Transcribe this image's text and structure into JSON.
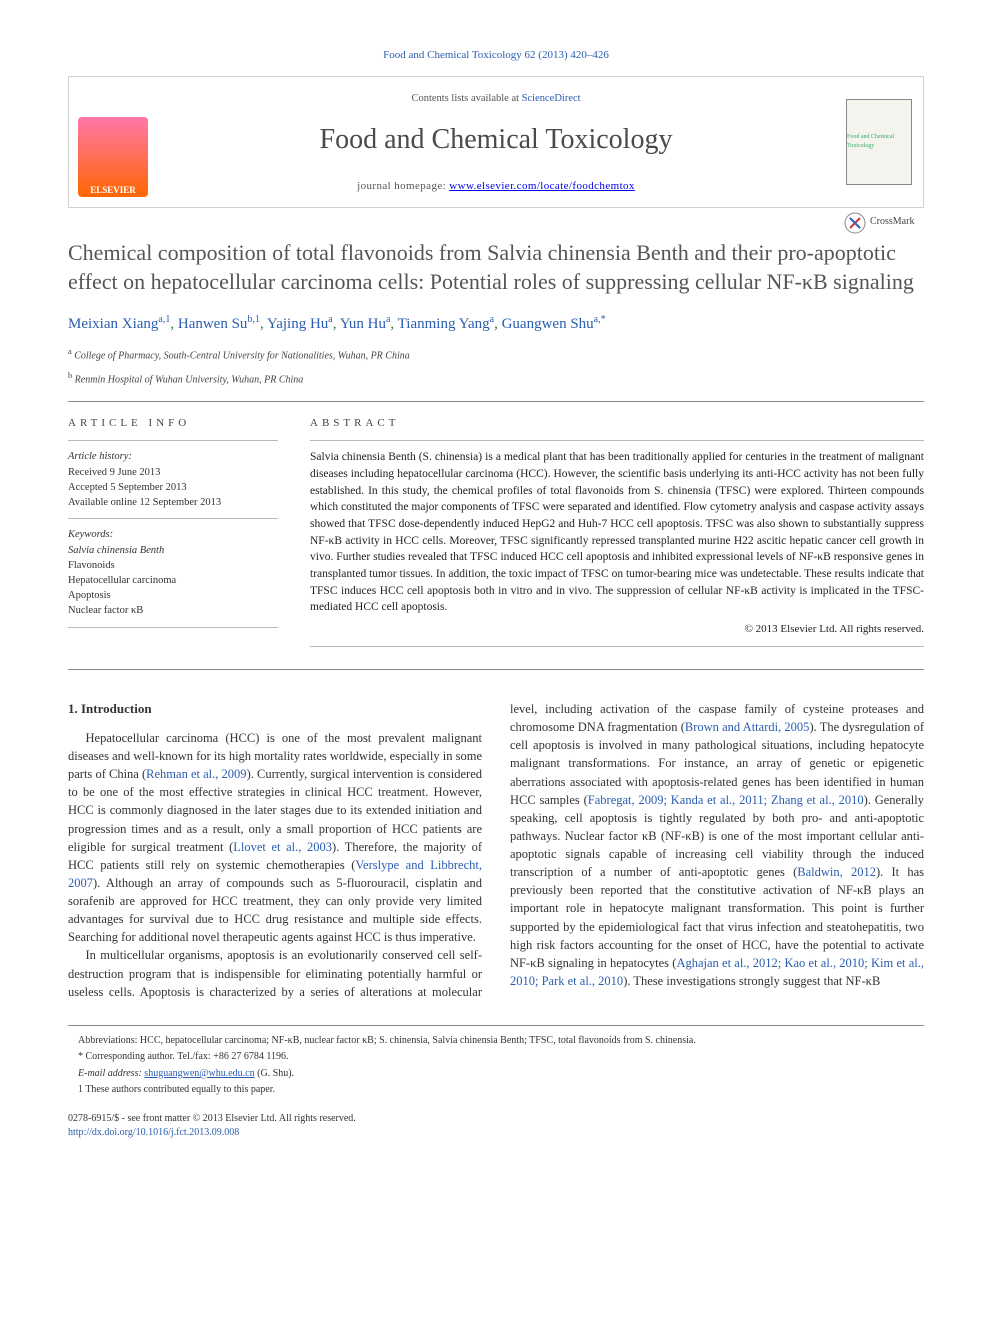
{
  "top_citation": "Food and Chemical Toxicology 62 (2013) 420–426",
  "header": {
    "contents_line_pre": "Contents lists available at ",
    "contents_link": "ScienceDirect",
    "journal_name": "Food and Chemical Toxicology",
    "homepage_label": "journal homepage: ",
    "homepage_url": "www.elsevier.com/locate/foodchemtox",
    "publisher_logo_label": "ELSEVIER",
    "cover_label": "Food and Chemical Toxicology"
  },
  "crossmark_label": "CrossMark",
  "title": "Chemical composition of total flavonoids from Salvia chinensia Benth and their pro-apoptotic effect on hepatocellular carcinoma cells: Potential roles of suppressing cellular NF-κB signaling",
  "authors_html": "Meixian Xiang<sup>a,1</sup>, Hanwen Su<sup>b,1</sup>, Yajing Hu<sup>a</sup>, Yun Hu<sup>a</sup>, Tianming Yang<sup>a</sup>, Guangwen Shu<sup>a,*</sup>",
  "affiliations": [
    "a College of Pharmacy, South-Central University for Nationalities, Wuhan, PR China",
    "b Renmin Hospital of Wuhan University, Wuhan, PR China"
  ],
  "article_info": {
    "head": "ARTICLE INFO",
    "history_label": "Article history:",
    "history": [
      "Received 9 June 2013",
      "Accepted 5 September 2013",
      "Available online 12 September 2013"
    ],
    "keywords_label": "Keywords:",
    "keywords": [
      "Salvia chinensia Benth",
      "Flavonoids",
      "Hepatocellular carcinoma",
      "Apoptosis",
      "Nuclear factor κB"
    ]
  },
  "abstract": {
    "head": "ABSTRACT",
    "text": "Salvia chinensia Benth (S. chinensia) is a medical plant that has been traditionally applied for centuries in the treatment of malignant diseases including hepatocellular carcinoma (HCC). However, the scientific basis underlying its anti-HCC activity has not been fully established. In this study, the chemical profiles of total flavonoids from S. chinensia (TFSC) were explored. Thirteen compounds which constituted the major components of TFSC were separated and identified. Flow cytometry analysis and caspase activity assays showed that TFSC dose-dependently induced HepG2 and Huh-7 HCC cell apoptosis. TFSC was also shown to substantially suppress NF-κB activity in HCC cells. Moreover, TFSC significantly repressed transplanted murine H22 ascitic hepatic cancer cell growth in vivo. Further studies revealed that TFSC induced HCC cell apoptosis and inhibited expressional levels of NF-κB responsive genes in transplanted tumor tissues. In addition, the toxic impact of TFSC on tumor-bearing mice was undetectable. These results indicate that TFSC induces HCC cell apoptosis both in vitro and in vivo. The suppression of cellular NF-κB activity is implicated in the TFSC-mediated HCC cell apoptosis.",
    "copyright": "© 2013 Elsevier Ltd. All rights reserved."
  },
  "intro": {
    "head": "1. Introduction",
    "p1_a": "Hepatocellular carcinoma (HCC) is one of the most prevalent malignant diseases and well-known for its high mortality rates worldwide, especially in some parts of China (",
    "p1_c1": "Rehman et al., 2009",
    "p1_b": "). Currently, surgical intervention is considered to be one of the most effective strategies in clinical HCC treatment. However, HCC is commonly diagnosed in the later stages due to its extended initiation and progression times and as a result, only a small proportion of HCC patients are eligible for surgical treatment (",
    "p1_c2": "Llovet et al., 2003",
    "p1_c": "). Therefore, the majority of HCC patients still rely on systemic chemotherapies (",
    "p1_c3": "Verslype and Libbrecht, 2007",
    "p1_d": "). Although an array of compounds such as 5-fluorouracil, cisplatin and sorafenib are approved for HCC treatment, they can only provide very limited advantages for survival due to HCC drug resistance and multiple side effects. Searching for additional novel therapeutic agents against HCC is thus imperative.",
    "p2_a": "In multicellular organisms, apoptosis is an evolutionarily conserved cell self-destruction program that is indispensible for eliminating potentially harmful or useless cells. Apoptosis is characterized by a series of alterations at molecular level, including activation of the caspase family of cysteine proteases and chromosome DNA fragmentation (",
    "p2_c1": "Brown and Attardi, 2005",
    "p2_b": "). The dysregulation of cell apoptosis is involved in many pathological situations, including hepatocyte malignant transformations. For instance, an array of genetic or epigenetic aberrations associated with apoptosis-related genes has been identified in human HCC samples (",
    "p2_c2": "Fabregat, 2009; Kanda et al., 2011; Zhang et al., 2010",
    "p2_c": "). Generally speaking, cell apoptosis is tightly regulated by both pro- and anti-apoptotic pathways. Nuclear factor κB (NF-κB) is one of the most important cellular anti-apoptotic signals capable of increasing cell viability through the induced transcription of a number of anti-apoptotic genes (",
    "p2_c3": "Baldwin, 2012",
    "p2_d": "). It has previously been reported that the constitutive activation of NF-κB plays an important role in hepatocyte malignant transformation. This point is further supported by the epidemiological fact that virus infection and steatohepatitis, two high risk factors accounting for the onset of HCC, have the potential to activate NF-κB signaling in hepatocytes (",
    "p2_c4": "Aghajan et al., 2012; Kao et al., 2010; Kim et al., 2010; Park et al., 2010",
    "p2_e": "). These investigations strongly suggest that NF-κB"
  },
  "footnotes": {
    "abbrev": "Abbreviations: HCC, hepatocellular carcinoma; NF-κB, nuclear factor κB; S. chinensia, Salvia chinensia Benth; TFSC, total flavonoids from S. chinensia.",
    "corr": "* Corresponding author. Tel./fax: +86 27 6784 1196.",
    "email_lbl": "E-mail address: ",
    "email": "shuguangwen@whu.edu.cn",
    "email_suffix": " (G. Shu).",
    "equal": "1 These authors contributed equally to this paper."
  },
  "footer": {
    "line1": "0278-6915/$ - see front matter © 2013 Elsevier Ltd. All rights reserved.",
    "doi": "http://dx.doi.org/10.1016/j.fct.2013.09.008"
  },
  "colors": {
    "link": "#2a5db0",
    "text": "#333333",
    "title": "#555555",
    "author": "#2a5db0"
  }
}
